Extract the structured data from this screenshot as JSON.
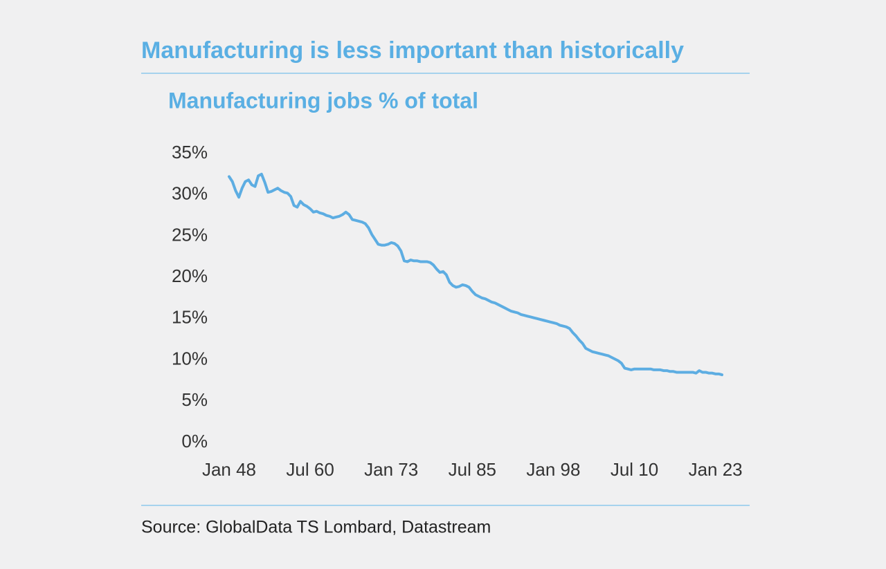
{
  "chart_data": {
    "type": "line",
    "title": "Manufacturing is less important than historically",
    "subtitle": "Manufacturing jobs % of total",
    "source": "Source: GlobalData TS Lombard, Datastream",
    "color": "#5dade2",
    "x": [
      "Jan 48",
      "Jul 48",
      "Jan 49",
      "Jul 49",
      "Jan 50",
      "Jul 50",
      "Jan 51",
      "Jul 51",
      "Jan 52",
      "Jul 52",
      "Jan 53",
      "Jul 53",
      "Jan 54",
      "Jul 54",
      "Jan 55",
      "Jul 55",
      "Jan 56",
      "Jul 56",
      "Jan 57",
      "Jul 57",
      "Jan 58",
      "Jul 58",
      "Jan 59",
      "Jul 59",
      "Jan 60",
      "Jul 60",
      "Jan 61",
      "Jul 61",
      "Jan 62",
      "Jul 62",
      "Jan 63",
      "Jul 63",
      "Jan 64",
      "Jul 64",
      "Jan 65",
      "Jul 65",
      "Jan 66",
      "Jul 66",
      "Jan 67",
      "Jul 67",
      "Jan 68",
      "Jul 68",
      "Jan 69",
      "Jul 69",
      "Jan 70",
      "Jul 70",
      "Jan 71",
      "Jul 71",
      "Jan 72",
      "Jul 72",
      "Jan 73",
      "Jul 73",
      "Jan 74",
      "Jul 74",
      "Jan 75",
      "Jul 75",
      "Jan 76",
      "Jul 76",
      "Jan 77",
      "Jul 77",
      "Jan 78",
      "Jul 78",
      "Jan 79",
      "Jul 79",
      "Jan 80",
      "Jul 80",
      "Jan 81",
      "Jul 81",
      "Jan 82",
      "Jul 82",
      "Jan 83",
      "Jul 83",
      "Jan 84",
      "Jul 84",
      "Jan 85",
      "Jul 85",
      "Jan 86",
      "Jul 86",
      "Jan 87",
      "Jul 87",
      "Jan 88",
      "Jul 88",
      "Jan 89",
      "Jul 89",
      "Jan 90",
      "Jul 90",
      "Jan 91",
      "Jul 91",
      "Jan 92",
      "Jul 92",
      "Jan 93",
      "Jul 93",
      "Jan 94",
      "Jul 94",
      "Jan 95",
      "Jul 95",
      "Jan 96",
      "Jul 96",
      "Jan 97",
      "Jul 97",
      "Jan 98",
      "Jul 98",
      "Jan 99",
      "Jul 99",
      "Jan 00",
      "Jul 00",
      "Jan 01",
      "Jul 01",
      "Jan 02",
      "Jul 02",
      "Jan 03",
      "Jul 03",
      "Jan 04",
      "Jul 04",
      "Jan 05",
      "Jul 05",
      "Jan 06",
      "Jul 06",
      "Jan 07",
      "Jul 07",
      "Jan 08",
      "Jul 08",
      "Jan 09",
      "Jul 09",
      "Jan 10",
      "Jul 10",
      "Jan 11",
      "Jul 11",
      "Jan 12",
      "Jul 12",
      "Jan 13",
      "Jul 13",
      "Jan 14",
      "Jul 14",
      "Jan 15",
      "Jul 15",
      "Jan 16",
      "Jul 16",
      "Jan 17",
      "Jul 17",
      "Jan 18",
      "Jul 18",
      "Jan 19",
      "Jul 19",
      "Jan 20",
      "Jul 20",
      "Jan 21",
      "Jul 21",
      "Jan 22",
      "Jul 22",
      "Jan 23",
      "Jul 23",
      "Jan 24"
    ],
    "values": [
      32.2,
      31.6,
      30.5,
      29.7,
      30.8,
      31.6,
      31.8,
      31.2,
      31.0,
      32.3,
      32.5,
      31.5,
      30.3,
      30.4,
      30.6,
      30.8,
      30.5,
      30.3,
      30.2,
      29.8,
      28.7,
      28.5,
      29.2,
      28.8,
      28.6,
      28.3,
      27.9,
      28.0,
      27.8,
      27.7,
      27.5,
      27.4,
      27.2,
      27.3,
      27.4,
      27.6,
      27.9,
      27.6,
      27.0,
      26.9,
      26.8,
      26.7,
      26.5,
      26.0,
      25.2,
      24.6,
      24.0,
      23.9,
      23.9,
      24.0,
      24.2,
      24.1,
      23.8,
      23.2,
      22.0,
      21.9,
      22.1,
      22.0,
      22.0,
      21.9,
      21.9,
      21.9,
      21.8,
      21.5,
      21.0,
      20.6,
      20.7,
      20.3,
      19.4,
      19.0,
      18.8,
      18.9,
      19.1,
      19.0,
      18.8,
      18.3,
      17.9,
      17.7,
      17.5,
      17.4,
      17.2,
      17.0,
      16.9,
      16.7,
      16.5,
      16.3,
      16.1,
      15.9,
      15.8,
      15.7,
      15.5,
      15.4,
      15.3,
      15.2,
      15.1,
      15.0,
      14.9,
      14.8,
      14.7,
      14.6,
      14.5,
      14.4,
      14.2,
      14.1,
      14.0,
      13.8,
      13.3,
      12.9,
      12.4,
      12.0,
      11.4,
      11.2,
      11.0,
      10.9,
      10.8,
      10.7,
      10.6,
      10.5,
      10.3,
      10.1,
      9.9,
      9.6,
      9.0,
      8.9,
      8.8,
      8.9,
      8.9,
      8.9,
      8.9,
      8.9,
      8.9,
      8.8,
      8.8,
      8.8,
      8.7,
      8.7,
      8.6,
      8.6,
      8.5,
      8.5,
      8.5,
      8.5,
      8.5,
      8.5,
      8.4,
      8.7,
      8.5,
      8.5,
      8.4,
      8.4,
      8.3,
      8.3,
      8.2
    ],
    "xticks": [
      "Jan 48",
      "Jul 60",
      "Jan 73",
      "Jul 85",
      "Jan 98",
      "Jul 10",
      "Jan 23"
    ],
    "ylim": [
      0,
      35
    ],
    "yticks": [
      {
        "value": 0,
        "label": "0%"
      },
      {
        "value": 5,
        "label": "5%"
      },
      {
        "value": 10,
        "label": "10%"
      },
      {
        "value": 15,
        "label": "15%"
      },
      {
        "value": 20,
        "label": "20%"
      },
      {
        "value": 25,
        "label": "25%"
      },
      {
        "value": 30,
        "label": "30%"
      },
      {
        "value": 35,
        "label": "35%"
      }
    ],
    "grid": false
  }
}
